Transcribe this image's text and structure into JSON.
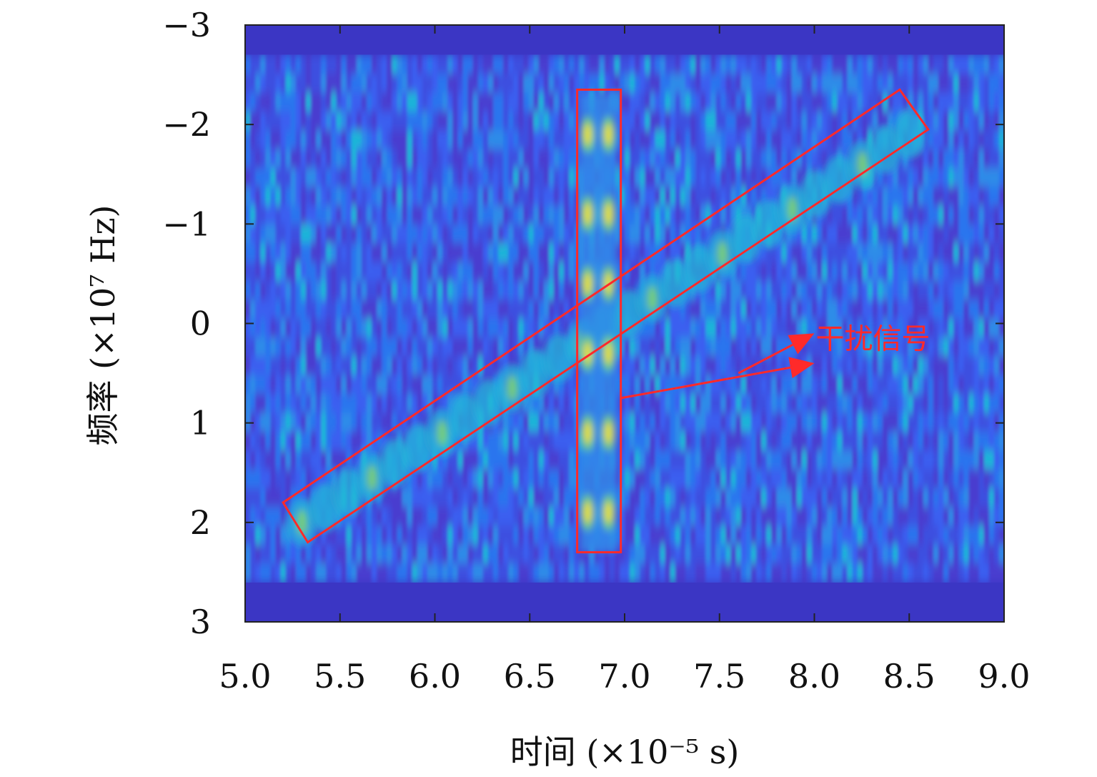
{
  "chart_data": {
    "type": "heatmap",
    "title": "",
    "xlabel": "时间 (×10⁻⁵ s)",
    "ylabel": "频率 (×10⁷ Hz)",
    "xlim": [
      5.0,
      9.0
    ],
    "ylim": [
      -3,
      3
    ],
    "y_axis_inverted": true,
    "x_ticks": [
      5.0,
      5.5,
      6.0,
      6.5,
      7.0,
      7.5,
      8.0,
      8.5,
      9.0
    ],
    "x_tick_labels": [
      "5.0",
      "5.5",
      "6.0",
      "6.5",
      "7.0",
      "7.5",
      "8.0",
      "8.5",
      "9.0"
    ],
    "y_ticks": [
      -3,
      -2,
      -1,
      0,
      1,
      2,
      3
    ],
    "y_tick_labels": [
      "−3",
      "−2",
      "−1",
      "0",
      "1",
      "2",
      "3"
    ],
    "grid": false,
    "colormap": "parula",
    "colors": {
      "background": "#3b36c4",
      "noise_low": "#3d4fe0",
      "noise_mid": "#2f8ce8",
      "noise_high": "#1fb5d8",
      "peak": "#f2e218",
      "annotation": "#ff2a2a"
    },
    "signals": [
      {
        "kind": "linear-chirp",
        "t_start": 5.3,
        "f_start": 2.0,
        "t_end": 8.5,
        "f_end": -1.9
      },
      {
        "kind": "vertical-comb",
        "t_center": 6.86,
        "f_range": [
          -2.3,
          2.3
        ],
        "peak_frequencies": [
          -1.9,
          -1.1,
          -0.4,
          0.3,
          1.1,
          1.9
        ]
      }
    ],
    "annotations": [
      {
        "text": "干扰信号",
        "boxes": [
          {
            "shape": "rotated-rect",
            "corners": [
              [
                5.2,
                1.8
              ],
              [
                5.33,
                2.2
              ],
              [
                8.6,
                -1.95
              ],
              [
                8.45,
                -2.35
              ]
            ]
          },
          {
            "shape": "rect",
            "t_range": [
              6.75,
              6.98
            ],
            "f_range": [
              -2.35,
              2.3
            ]
          }
        ],
        "arrows": [
          {
            "from": [
              7.6,
              0.5
            ],
            "to": [
              8.0,
              0.1
            ]
          },
          {
            "from": [
              6.98,
              0.75
            ],
            "to": [
              8.0,
              0.4
            ]
          }
        ]
      }
    ]
  }
}
